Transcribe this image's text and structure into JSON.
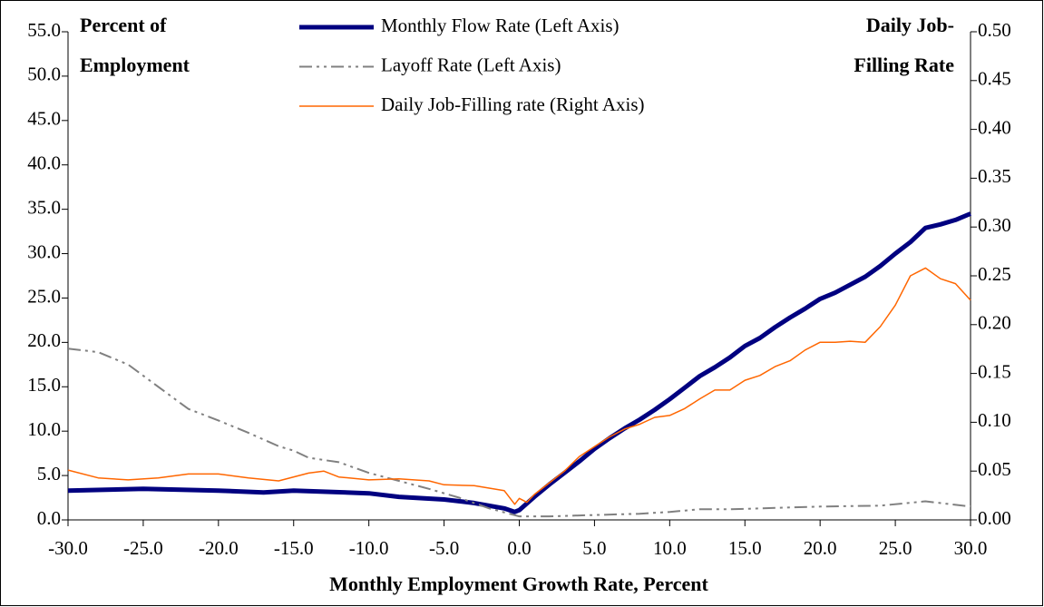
{
  "chart_data": {
    "type": "line",
    "x_label": "Monthly Employment Growth  Rate, Percent",
    "y_label": [
      "Percent of",
      "Employment"
    ],
    "y2_label": [
      "Daily Job-",
      "Filling Rate"
    ],
    "xlim": [
      -30,
      30
    ],
    "xticks": [
      {
        "value": -30,
        "label": "-30.0"
      },
      {
        "value": -25,
        "label": "-25.0"
      },
      {
        "value": -20,
        "label": "-20.0"
      },
      {
        "value": -15,
        "label": "-15.0"
      },
      {
        "value": -10,
        "label": "-10.0"
      },
      {
        "value": -5,
        "label": "-5.0"
      },
      {
        "value": 0,
        "label": "0.0"
      },
      {
        "value": 5,
        "label": "5.0"
      },
      {
        "value": 10,
        "label": "10.0"
      },
      {
        "value": 15,
        "label": "15.0"
      },
      {
        "value": 20,
        "label": "20.0"
      },
      {
        "value": 25,
        "label": "25.0"
      },
      {
        "value": 30,
        "label": "30.0"
      }
    ],
    "ylim": [
      0,
      55
    ],
    "yticks": [
      {
        "value": 0,
        "label": "0.0"
      },
      {
        "value": 5,
        "label": "5.0"
      },
      {
        "value": 10,
        "label": "10.0"
      },
      {
        "value": 15,
        "label": "15.0"
      },
      {
        "value": 20,
        "label": "20.0"
      },
      {
        "value": 25,
        "label": "25.0"
      },
      {
        "value": 30,
        "label": "30.0"
      },
      {
        "value": 35,
        "label": "35.0"
      },
      {
        "value": 40,
        "label": "40.0"
      },
      {
        "value": 45,
        "label": "45.0"
      },
      {
        "value": 50,
        "label": "50.0"
      },
      {
        "value": 55,
        "label": "55.0"
      }
    ],
    "y2lim": [
      0,
      0.5
    ],
    "y2ticks": [
      {
        "value": 0,
        "label": "0.00"
      },
      {
        "value": 0.05,
        "label": "0.05"
      },
      {
        "value": 0.1,
        "label": "0.10"
      },
      {
        "value": 0.15,
        "label": "0.15"
      },
      {
        "value": 0.2,
        "label": "0.20"
      },
      {
        "value": 0.25,
        "label": "0.25"
      },
      {
        "value": 0.3,
        "label": "0.30"
      },
      {
        "value": 0.35,
        "label": "0.35"
      },
      {
        "value": 0.4,
        "label": "0.40"
      },
      {
        "value": 0.45,
        "label": "0.45"
      },
      {
        "value": 0.5,
        "label": "0.50"
      }
    ],
    "grid": false,
    "series": [
      {
        "name": "Monthly Flow Rate (Left Axis)",
        "color": "#000080",
        "style": "solid",
        "width": 5,
        "x": [
          -30,
          -25,
          -20,
          -17,
          -15,
          -10,
          -8,
          -5,
          -3,
          -1,
          -0.3,
          0,
          1,
          2,
          3,
          4,
          5,
          6,
          7,
          8,
          9,
          10,
          11,
          12,
          13,
          14,
          15,
          16,
          17,
          18,
          19,
          20,
          21,
          22,
          23,
          24,
          25,
          26,
          27,
          28,
          29,
          30
        ],
        "values": [
          3.3,
          3.5,
          3.3,
          3.1,
          3.3,
          3.0,
          2.6,
          2.3,
          1.9,
          1.3,
          0.9,
          1.1,
          2.6,
          4.0,
          5.3,
          6.6,
          8.0,
          9.2,
          10.3,
          11.3,
          12.4,
          13.6,
          14.9,
          16.2,
          17.2,
          18.3,
          19.6,
          20.5,
          21.7,
          22.8,
          23.8,
          24.9,
          25.6,
          26.5,
          27.4,
          28.6,
          30.0,
          31.3,
          32.9,
          33.3,
          33.8,
          34.5
        ]
      },
      {
        "name": "Layoff Rate (Left Axis)",
        "color": "#808080",
        "style": "dashdot",
        "width": 2,
        "x": [
          -30,
          -28,
          -26,
          -24,
          -22,
          -20,
          -18,
          -16,
          -15,
          -14,
          -12,
          -10,
          -8,
          -6,
          -4,
          -2,
          0,
          2,
          4,
          8,
          10,
          12,
          14,
          16,
          18,
          20,
          24,
          27,
          30
        ],
        "values": [
          19.3,
          18.9,
          17.5,
          15.0,
          12.5,
          11.2,
          9.8,
          8.3,
          7.8,
          7.0,
          6.5,
          5.3,
          4.4,
          3.5,
          2.5,
          1.3,
          0.4,
          0.4,
          0.5,
          0.7,
          0.9,
          1.2,
          1.2,
          1.3,
          1.4,
          1.5,
          1.6,
          2.1,
          1.5
        ]
      },
      {
        "name": "Daily Job-Filling rate (Right Axis)",
        "color": "#ff6600",
        "style": "solid",
        "width": 1.5,
        "axis": "y2",
        "x": [
          -30,
          -28,
          -26,
          -24,
          -22,
          -20,
          -18,
          -16,
          -14,
          -13,
          -12,
          -10,
          -8,
          -6,
          -5,
          -3,
          -1,
          -0.3,
          0,
          0.5,
          1,
          2,
          3,
          4,
          5,
          6,
          7,
          8,
          9,
          10,
          11,
          12,
          13,
          14,
          15,
          16,
          17,
          18,
          19,
          20,
          21,
          22,
          23,
          24,
          25,
          26,
          27,
          28,
          29,
          30
        ],
        "values": [
          0.051,
          0.043,
          0.041,
          0.043,
          0.047,
          0.047,
          0.043,
          0.04,
          0.048,
          0.05,
          0.044,
          0.041,
          0.042,
          0.04,
          0.036,
          0.035,
          0.03,
          0.016,
          0.022,
          0.018,
          0.026,
          0.038,
          0.05,
          0.065,
          0.075,
          0.085,
          0.093,
          0.098,
          0.105,
          0.107,
          0.114,
          0.124,
          0.133,
          0.133,
          0.143,
          0.148,
          0.157,
          0.163,
          0.174,
          0.182,
          0.182,
          0.183,
          0.182,
          0.198,
          0.22,
          0.25,
          0.258,
          0.247,
          0.242,
          0.225
        ]
      }
    ]
  }
}
